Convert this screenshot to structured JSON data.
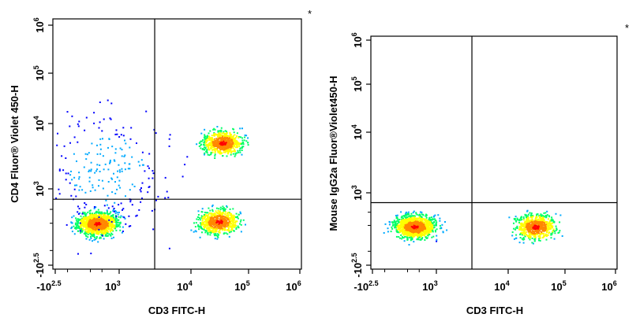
{
  "chart_data": [
    {
      "type": "scatter",
      "plot_style": "density-colored flow cytometry dot plot, quadrant gated",
      "xlabel": "CD3 FITC-H",
      "ylabel": "CD4 Fluor® Violet 450-H",
      "corner_mark": "*",
      "x_scale": "biexponential",
      "y_scale": "biexponential",
      "xlim": [
        -316,
        1000000
      ],
      "ylim": [
        -316,
        1000000
      ],
      "x_ticks": [
        {
          "base": "-10",
          "exp": "2.5",
          "value": -316
        },
        {
          "base": "10",
          "exp": "3",
          "value": 1000
        },
        {
          "base": "10",
          "exp": "4",
          "value": 10000
        },
        {
          "base": "10",
          "exp": "5",
          "value": 100000
        },
        {
          "base": "10",
          "exp": "6",
          "value": 1000000
        }
      ],
      "y_ticks": [
        {
          "base": "-10",
          "exp": "2.5",
          "value": -316
        },
        {
          "base": "10",
          "exp": "3",
          "value": 1000
        },
        {
          "base": "10",
          "exp": "4",
          "value": 10000
        },
        {
          "base": "10",
          "exp": "5",
          "value": 100000
        },
        {
          "base": "10",
          "exp": "6",
          "value": 1000000
        }
      ],
      "quadrant_gate": {
        "x": 3200,
        "y": 560
      },
      "populations": [
        {
          "name": "CD3-CD4-",
          "x": 200,
          "y": 100,
          "density": "high"
        },
        {
          "name": "CD3+CD4-",
          "x": 30000,
          "y": 120,
          "density": "medium"
        },
        {
          "name": "CD3+CD4+",
          "x": 35000,
          "y": 5200,
          "density": "medium"
        },
        {
          "name": "CD3-CD4+ (scattered)",
          "x": 400,
          "y": 2000,
          "density": "low"
        }
      ]
    },
    {
      "type": "scatter",
      "plot_style": "density-colored flow cytometry dot plot, quadrant gated",
      "xlabel": "CD3 FITC-H",
      "ylabel": "Mouse IgG2a Fluor®Violet450-H",
      "corner_mark": "*",
      "x_scale": "biexponential",
      "y_scale": "biexponential",
      "xlim": [
        -316,
        1000000
      ],
      "ylim": [
        -316,
        1000000
      ],
      "x_ticks": [
        {
          "base": "-10",
          "exp": "2.5",
          "value": -316
        },
        {
          "base": "10",
          "exp": "3",
          "value": 1000
        },
        {
          "base": "10",
          "exp": "4",
          "value": 10000
        },
        {
          "base": "10",
          "exp": "5",
          "value": 100000
        },
        {
          "base": "10",
          "exp": "6",
          "value": 1000000
        }
      ],
      "y_ticks": [
        {
          "base": "-10",
          "exp": "2.5",
          "value": -316
        },
        {
          "base": "10",
          "exp": "3",
          "value": 1000
        },
        {
          "base": "10",
          "exp": "4",
          "value": 10000
        },
        {
          "base": "10",
          "exp": "5",
          "value": 100000
        },
        {
          "base": "10",
          "exp": "6",
          "value": 1000000
        }
      ],
      "quadrant_gate": {
        "x": 3200,
        "y": 560
      },
      "populations": [
        {
          "name": "CD3-",
          "x": 200,
          "y": 90,
          "density": "high"
        },
        {
          "name": "CD3+",
          "x": 30000,
          "y": 90,
          "density": "medium"
        }
      ]
    }
  ],
  "colors": {
    "density_scale": [
      "#0000ff",
      "#00aaff",
      "#00ff66",
      "#ffff00",
      "#ff8800",
      "#ff0000"
    ],
    "axis": "#000000",
    "gate": "#000000"
  }
}
